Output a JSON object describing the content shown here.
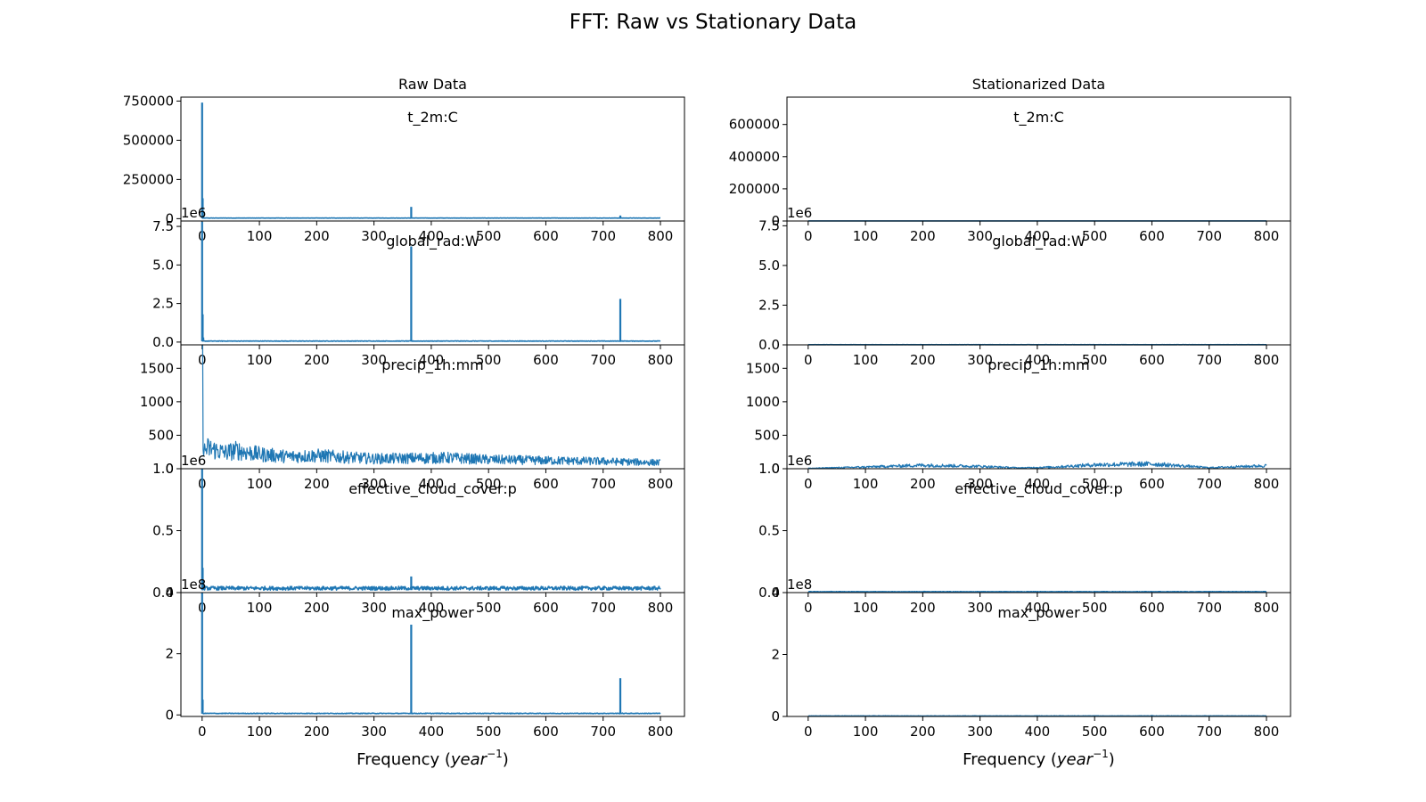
{
  "figure": {
    "title": "FFT: Raw vs Stationary Data",
    "x_axis_label_main": "Frequency (",
    "x_axis_label_italic": "year",
    "x_axis_label_exponent": "−1",
    "x_axis_label_close": ")"
  },
  "colors": {
    "line": "#1f77b4",
    "axes": "#000000",
    "background": "#ffffff"
  },
  "chart_data": [
    {
      "type": "line",
      "title": "Raw Data",
      "xlabel": "Frequency (year^-1)",
      "xlim": [
        -37,
        842
      ],
      "x_ticks": [
        0,
        100,
        200,
        300,
        400,
        500,
        600,
        700,
        800
      ],
      "subplots": [
        {
          "name": "t_2m:C",
          "offset_label": "",
          "ylim": [
            -15000,
            775000
          ],
          "y_ticks": [
            0,
            250000,
            500000,
            750000
          ],
          "y_tick_labels": [
            "0",
            "250000",
            "500000",
            "750000"
          ],
          "baseline": 3000,
          "noise": 1500,
          "points": [
            [
              0,
              740000
            ],
            [
              1,
              130000
            ],
            [
              2,
              15000
            ],
            [
              365,
              75000
            ],
            [
              730,
              20000
            ]
          ]
        },
        {
          "name": "global_rad:W",
          "offset_label": "1e6",
          "ylim": [
            -0.18,
            7.85
          ],
          "y_ticks": [
            0,
            2.5,
            5.0,
            7.5
          ],
          "y_tick_labels": [
            "0.0",
            "2.5",
            "5.0",
            "7.5"
          ],
          "baseline": 0.05,
          "noise": 0.03,
          "points": [
            [
              0,
              7.8
            ],
            [
              1,
              1.8
            ],
            [
              2,
              0.3
            ],
            [
              365,
              6.2
            ],
            [
              730,
              2.8
            ]
          ]
        },
        {
          "name": "precip_1h:mm",
          "offset_label": "",
          "ylim": [
            0,
            1850
          ],
          "y_ticks": [
            0,
            500,
            1000,
            1500
          ],
          "y_tick_labels": [
            "0",
            "500",
            "1000",
            "1500"
          ],
          "baseline": 100,
          "noise": 120,
          "points": [
            [
              0,
              1850
            ],
            [
              1,
              1250
            ],
            [
              3,
              400
            ],
            [
              10,
              470
            ],
            [
              20,
              440
            ],
            [
              40,
              370
            ],
            [
              60,
              420
            ],
            [
              100,
              330
            ],
            [
              150,
              280
            ],
            [
              200,
              300
            ],
            [
              300,
              230
            ],
            [
              430,
              250
            ],
            [
              500,
              210
            ],
            [
              600,
              190
            ],
            [
              700,
              170
            ],
            [
              800,
              140
            ]
          ]
        },
        {
          "name": "effective_cloud_cover:p",
          "offset_label": "1e6",
          "ylim": [
            0,
            1.0
          ],
          "y_ticks": [
            0,
            0.5,
            1.0
          ],
          "y_tick_labels": [
            "0.0",
            "0.5",
            "1.0"
          ],
          "baseline": 0.02,
          "noise": 0.03,
          "points": [
            [
              0,
              1.0
            ],
            [
              1,
              0.2
            ],
            [
              2,
              0.08
            ],
            [
              100,
              0.04
            ],
            [
              365,
              0.13
            ],
            [
              730,
              0.03
            ]
          ]
        },
        {
          "name": "max_power",
          "offset_label": "1e8",
          "ylim": [
            -0.05,
            4.0
          ],
          "y_ticks": [
            0,
            2,
            4
          ],
          "y_tick_labels": [
            "0",
            "2",
            "4"
          ],
          "baseline": 0.04,
          "noise": 0.02,
          "points": [
            [
              0,
              4.0
            ],
            [
              1,
              0.5
            ],
            [
              2,
              0.1
            ],
            [
              365,
              2.95
            ],
            [
              730,
              1.2
            ]
          ]
        }
      ]
    },
    {
      "type": "line",
      "title": "Stationarized Data",
      "xlabel": "Frequency (year^-1)",
      "xlim": [
        -37,
        842
      ],
      "x_ticks": [
        0,
        100,
        200,
        300,
        400,
        500,
        600,
        700,
        800
      ],
      "subplots": [
        {
          "name": "t_2m:C",
          "offset_label": "",
          "ylim": [
            0,
            770000
          ],
          "y_ticks": [
            0,
            200000,
            400000,
            600000
          ],
          "y_tick_labels": [
            "0",
            "200000",
            "400000",
            "600000"
          ],
          "baseline": 300,
          "noise": 200,
          "points": [
            [
              0,
              1000
            ],
            [
              800,
              500
            ]
          ]
        },
        {
          "name": "global_rad:W",
          "offset_label": "1e6",
          "ylim": [
            0,
            7.8
          ],
          "y_ticks": [
            0,
            2.5,
            5.0,
            7.5
          ],
          "y_tick_labels": [
            "0.0",
            "2.5",
            "5.0",
            "7.5"
          ],
          "baseline": 0.01,
          "noise": 0.005,
          "points": [
            [
              0,
              0.02
            ],
            [
              800,
              0.01
            ]
          ]
        },
        {
          "name": "precip_1h:mm",
          "offset_label": "",
          "ylim": [
            0,
            1850
          ],
          "y_ticks": [
            0,
            500,
            1000,
            1500
          ],
          "y_tick_labels": [
            "0",
            "500",
            "1000",
            "1500"
          ],
          "baseline": 40,
          "noise": 30,
          "points": [
            [
              0,
              10
            ],
            [
              100,
              40
            ],
            [
              200,
              80
            ],
            [
              300,
              55
            ],
            [
              370,
              20
            ],
            [
              430,
              40
            ],
            [
              500,
              90
            ],
            [
              600,
              110
            ],
            [
              700,
              25
            ],
            [
              800,
              70
            ]
          ]
        },
        {
          "name": "effective_cloud_cover:p",
          "offset_label": "1e6",
          "ylim": [
            0,
            1.0
          ],
          "y_ticks": [
            0,
            0.5,
            1.0
          ],
          "y_tick_labels": [
            "0.0",
            "0.5",
            "1.0"
          ],
          "baseline": 0.005,
          "noise": 0.004,
          "points": [
            [
              0,
              0.005
            ],
            [
              500,
              0.015
            ],
            [
              600,
              0.012
            ],
            [
              800,
              0.005
            ]
          ]
        },
        {
          "name": "max_power",
          "offset_label": "1e8",
          "ylim": [
            0,
            4.0
          ],
          "y_ticks": [
            0,
            2,
            4
          ],
          "y_tick_labels": [
            "0",
            "2",
            "4"
          ],
          "baseline": 0.01,
          "noise": 0.01,
          "points": [
            [
              0,
              0.01
            ],
            [
              500,
              0.04
            ],
            [
              600,
              0.05
            ],
            [
              800,
              0.02
            ]
          ]
        }
      ]
    }
  ]
}
